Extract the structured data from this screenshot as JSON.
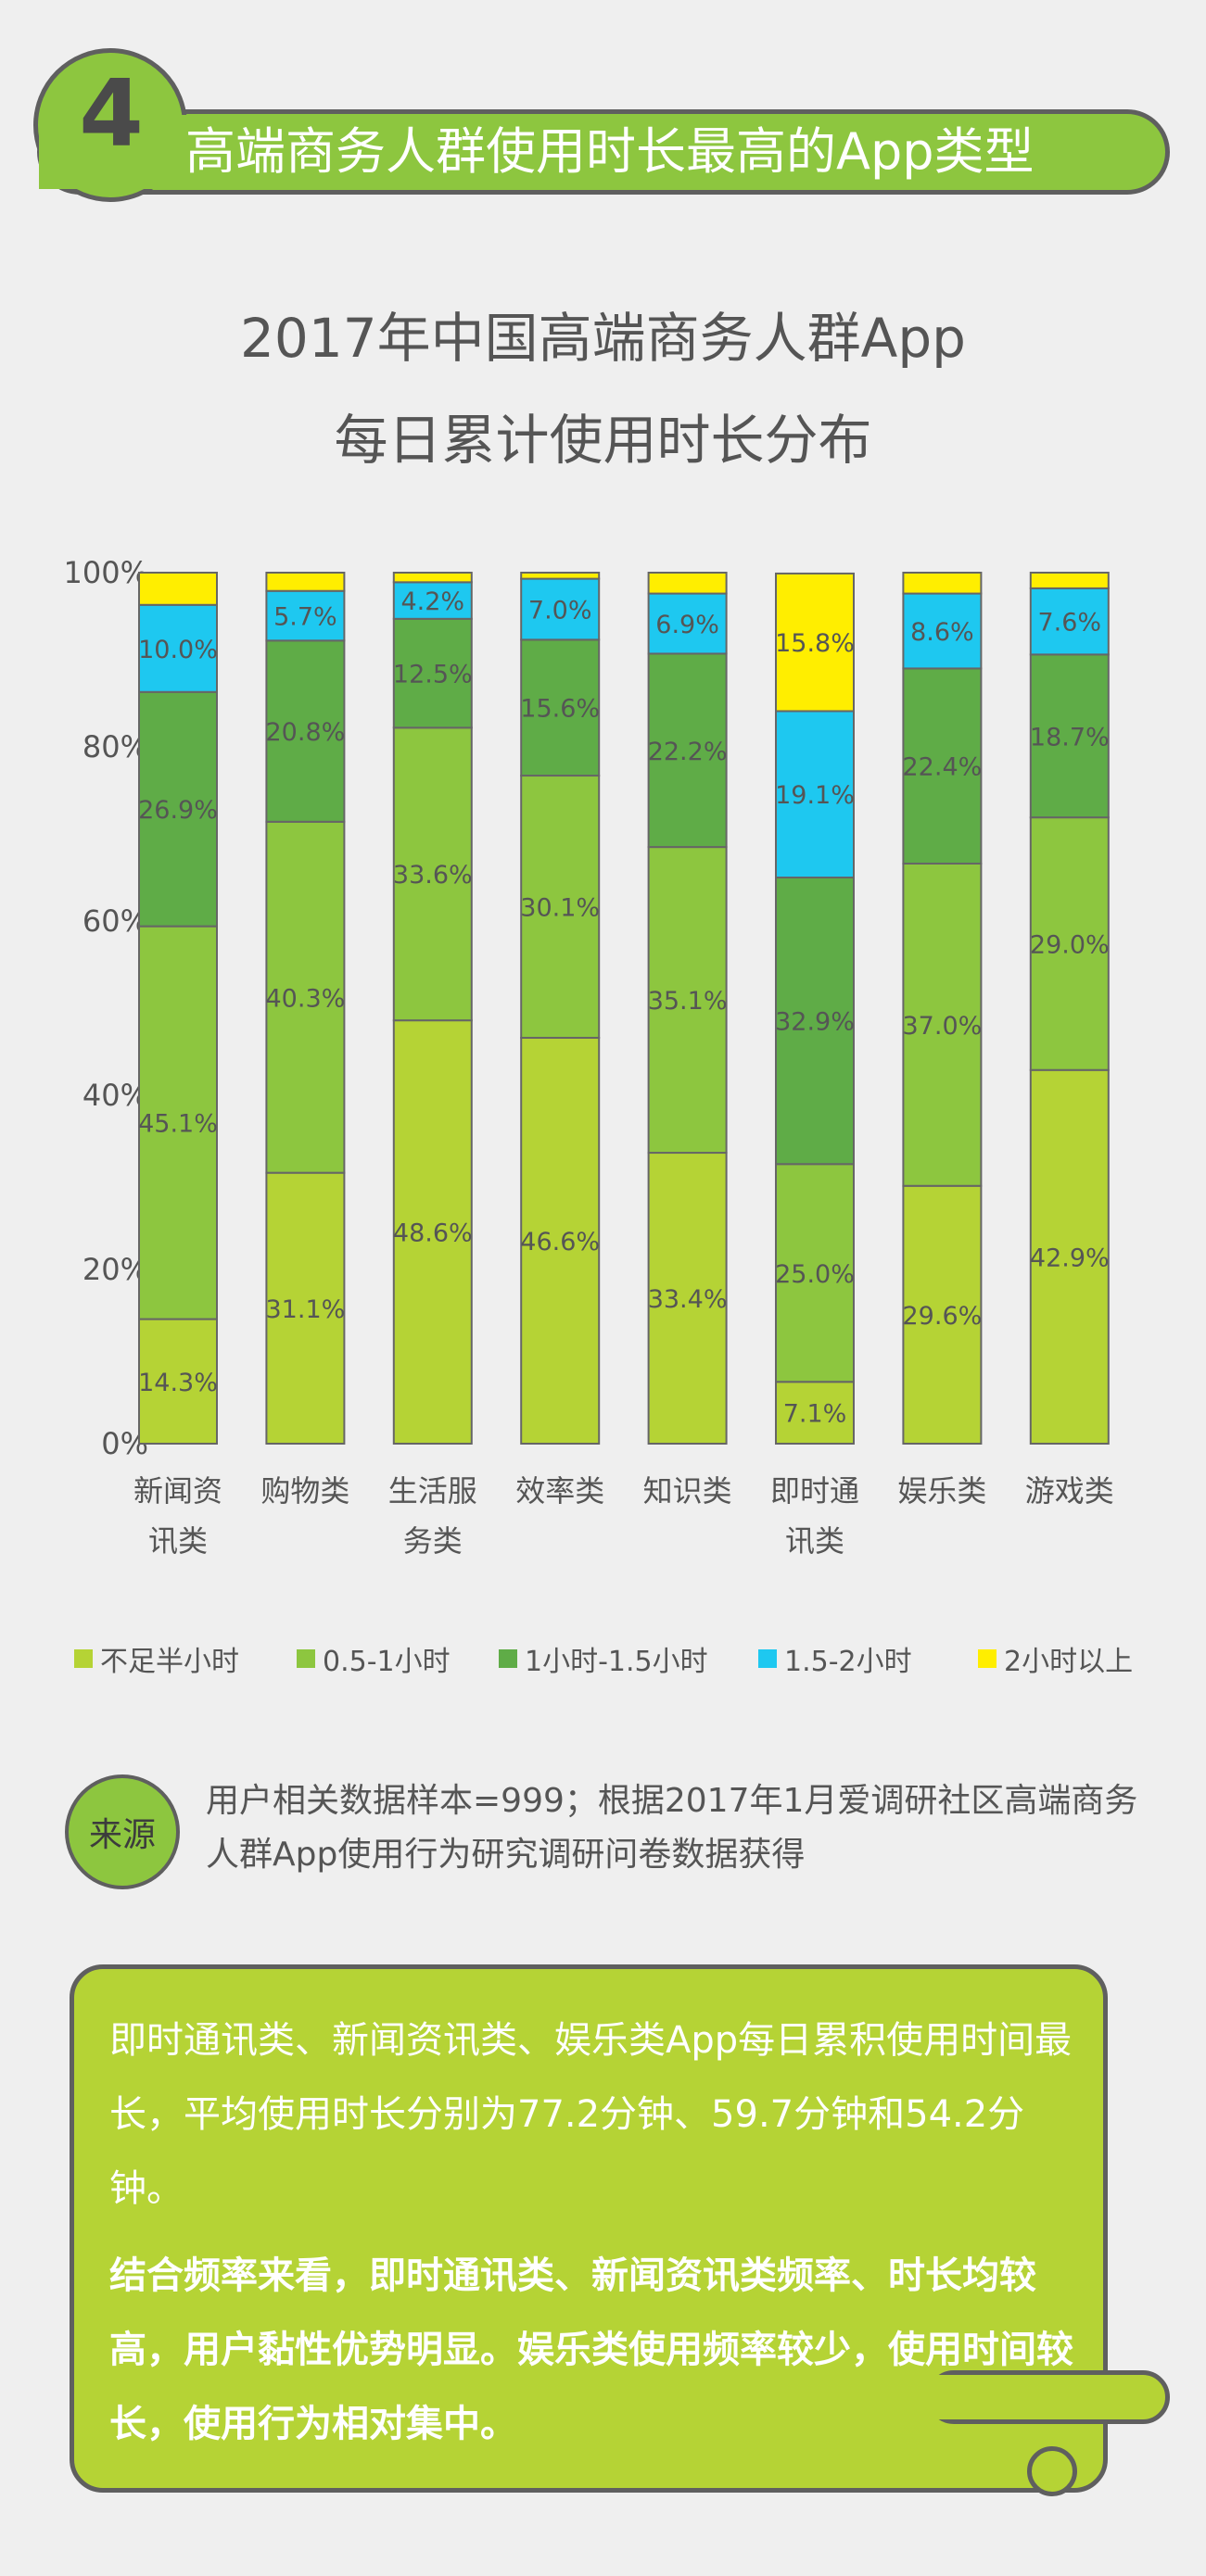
{
  "header": {
    "section_number": "4",
    "title": "高端商务人群使用时长最高的App类型"
  },
  "chart_title": {
    "line1": "2017年中国高端商务人群App",
    "line2": "每日累计使用时长分布"
  },
  "chart_data": {
    "type": "bar",
    "stacked": true,
    "title": "2017年中国高端商务人群App每日累计使用时长分布",
    "categories": [
      [
        "新闻资",
        "讯类"
      ],
      [
        "购物类"
      ],
      [
        "生活服",
        "务类"
      ],
      [
        "效率类"
      ],
      [
        "知识类"
      ],
      [
        "即时通",
        "讯类"
      ],
      [
        "娱乐类"
      ],
      [
        "游戏类"
      ]
    ],
    "y_ticks": [
      "0%",
      "20%",
      "40%",
      "60%",
      "80%",
      "100%"
    ],
    "ylim": [
      0,
      100
    ],
    "series": [
      {
        "name": "不足半小时",
        "color": "#b5d335",
        "values": [
          14.3,
          31.1,
          48.6,
          46.6,
          33.4,
          7.1,
          29.6,
          42.9
        ],
        "labels": [
          "14.3%",
          "31.1%",
          "48.6%",
          "46.6%",
          "33.4%",
          "7.1%",
          "29.6%",
          "42.9%"
        ]
      },
      {
        "name": "0.5-1小时",
        "color": "#8dc63f",
        "values": [
          45.1,
          40.3,
          33.6,
          30.1,
          35.1,
          25.0,
          37.0,
          29.0
        ],
        "labels": [
          "45.1%",
          "40.3%",
          "33.6%",
          "30.1%",
          "35.1%",
          "25.0%",
          "37.0%",
          "29.0%"
        ]
      },
      {
        "name": "1小时-1.5小时",
        "color": "#5fac47",
        "values": [
          26.9,
          20.8,
          12.5,
          15.6,
          22.2,
          32.9,
          22.4,
          18.7
        ],
        "labels": [
          "26.9%",
          "20.8%",
          "12.5%",
          "15.6%",
          "22.2%",
          "32.9%",
          "22.4%",
          "18.7%"
        ]
      },
      {
        "name": "1.5-2小时",
        "color": "#1ec8f0",
        "values": [
          10.0,
          5.7,
          4.2,
          7.0,
          6.9,
          19.1,
          8.6,
          7.6
        ],
        "labels": [
          "10.0%",
          "5.7%",
          "4.2%",
          "7.0%",
          "6.9%",
          "19.1%",
          "8.6%",
          "7.6%"
        ]
      },
      {
        "name": "2小时以上",
        "color": "#ffee00",
        "values": [
          3.7,
          2.1,
          1.1,
          0.7,
          2.4,
          15.8,
          2.4,
          1.8
        ],
        "labels": [
          "",
          "",
          "",
          "",
          "",
          "15.8%",
          "",
          ""
        ]
      }
    ]
  },
  "legend": [
    {
      "label": "不足半小时",
      "color": "#b5d335"
    },
    {
      "label": "0.5-1小时",
      "color": "#8dc63f"
    },
    {
      "label": "1小时-1.5小时",
      "color": "#5fac47"
    },
    {
      "label": "1.5-2小时",
      "color": "#1ec8f0"
    },
    {
      "label": "2小时以上",
      "color": "#ffee00"
    }
  ],
  "source": {
    "badge": "来源",
    "text": "用户相关数据样本=999；根据2017年1月爱调研社区高端商务人群App使用行为研究调研问卷数据获得"
  },
  "summary": {
    "paragraph1": "即时通讯类、新闻资讯类、娱乐类App每日累积使用时间最长，平均使用时长分别为77.2分钟、59.7分钟和54.2分钟。",
    "paragraph2": "结合频率来看，即时通讯类、新闻资讯类频率、时长均较高，用户黏性优势明显。娱乐类使用频率较少，使用时间较长，使用行为相对集中。"
  }
}
